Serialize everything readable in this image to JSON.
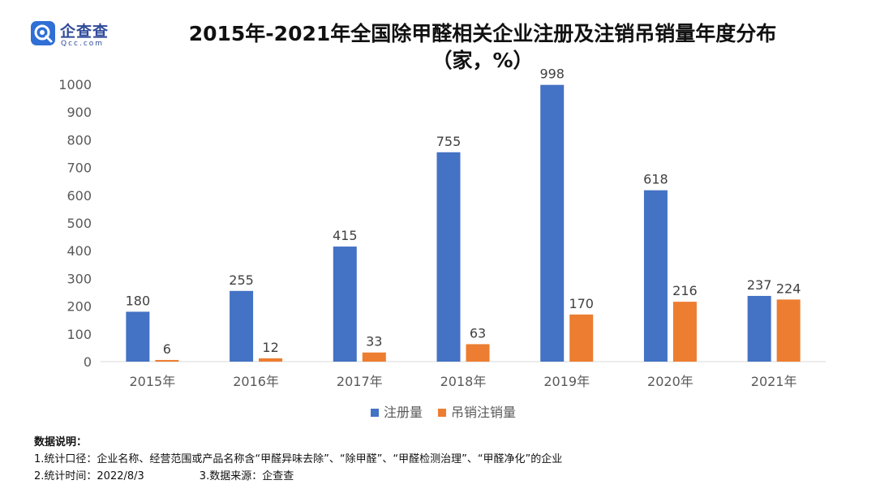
{
  "brand": {
    "name": "企查查",
    "url": "Qcc.com",
    "logo_color": "#2f6fd6"
  },
  "chart_data": {
    "type": "bar",
    "title_line1": "2015年-2021年全国除甲醛相关企业注册及注销吊销量年度分布",
    "title_line2": "（家，%）",
    "categories": [
      "2015年",
      "2016年",
      "2017年",
      "2018年",
      "2019年",
      "2020年",
      "2021年"
    ],
    "series": [
      {
        "name": "注册量",
        "color": "#4472c4",
        "values": [
          180,
          255,
          415,
          755,
          998,
          618,
          237
        ]
      },
      {
        "name": "吊销注销量",
        "color": "#ed7d31",
        "values": [
          6,
          12,
          33,
          63,
          170,
          216,
          224
        ]
      }
    ],
    "ylim": [
      0,
      1000
    ],
    "yticks": [
      0,
      100,
      200,
      300,
      400,
      500,
      600,
      700,
      800,
      900,
      1000
    ],
    "grid": false,
    "legend": "bottom",
    "xlabel": "",
    "ylabel": ""
  },
  "notes": {
    "heading": "数据说明：",
    "line1": "1.统计口径：企业名称、经营范围或产品名称含“甲醛异味去除”、“除甲醛”、“甲醛检测治理”、“甲醛净化”的企业",
    "line2a": "2.统计时间：2022/8/3",
    "line2b": "3.数据来源：企查查"
  }
}
